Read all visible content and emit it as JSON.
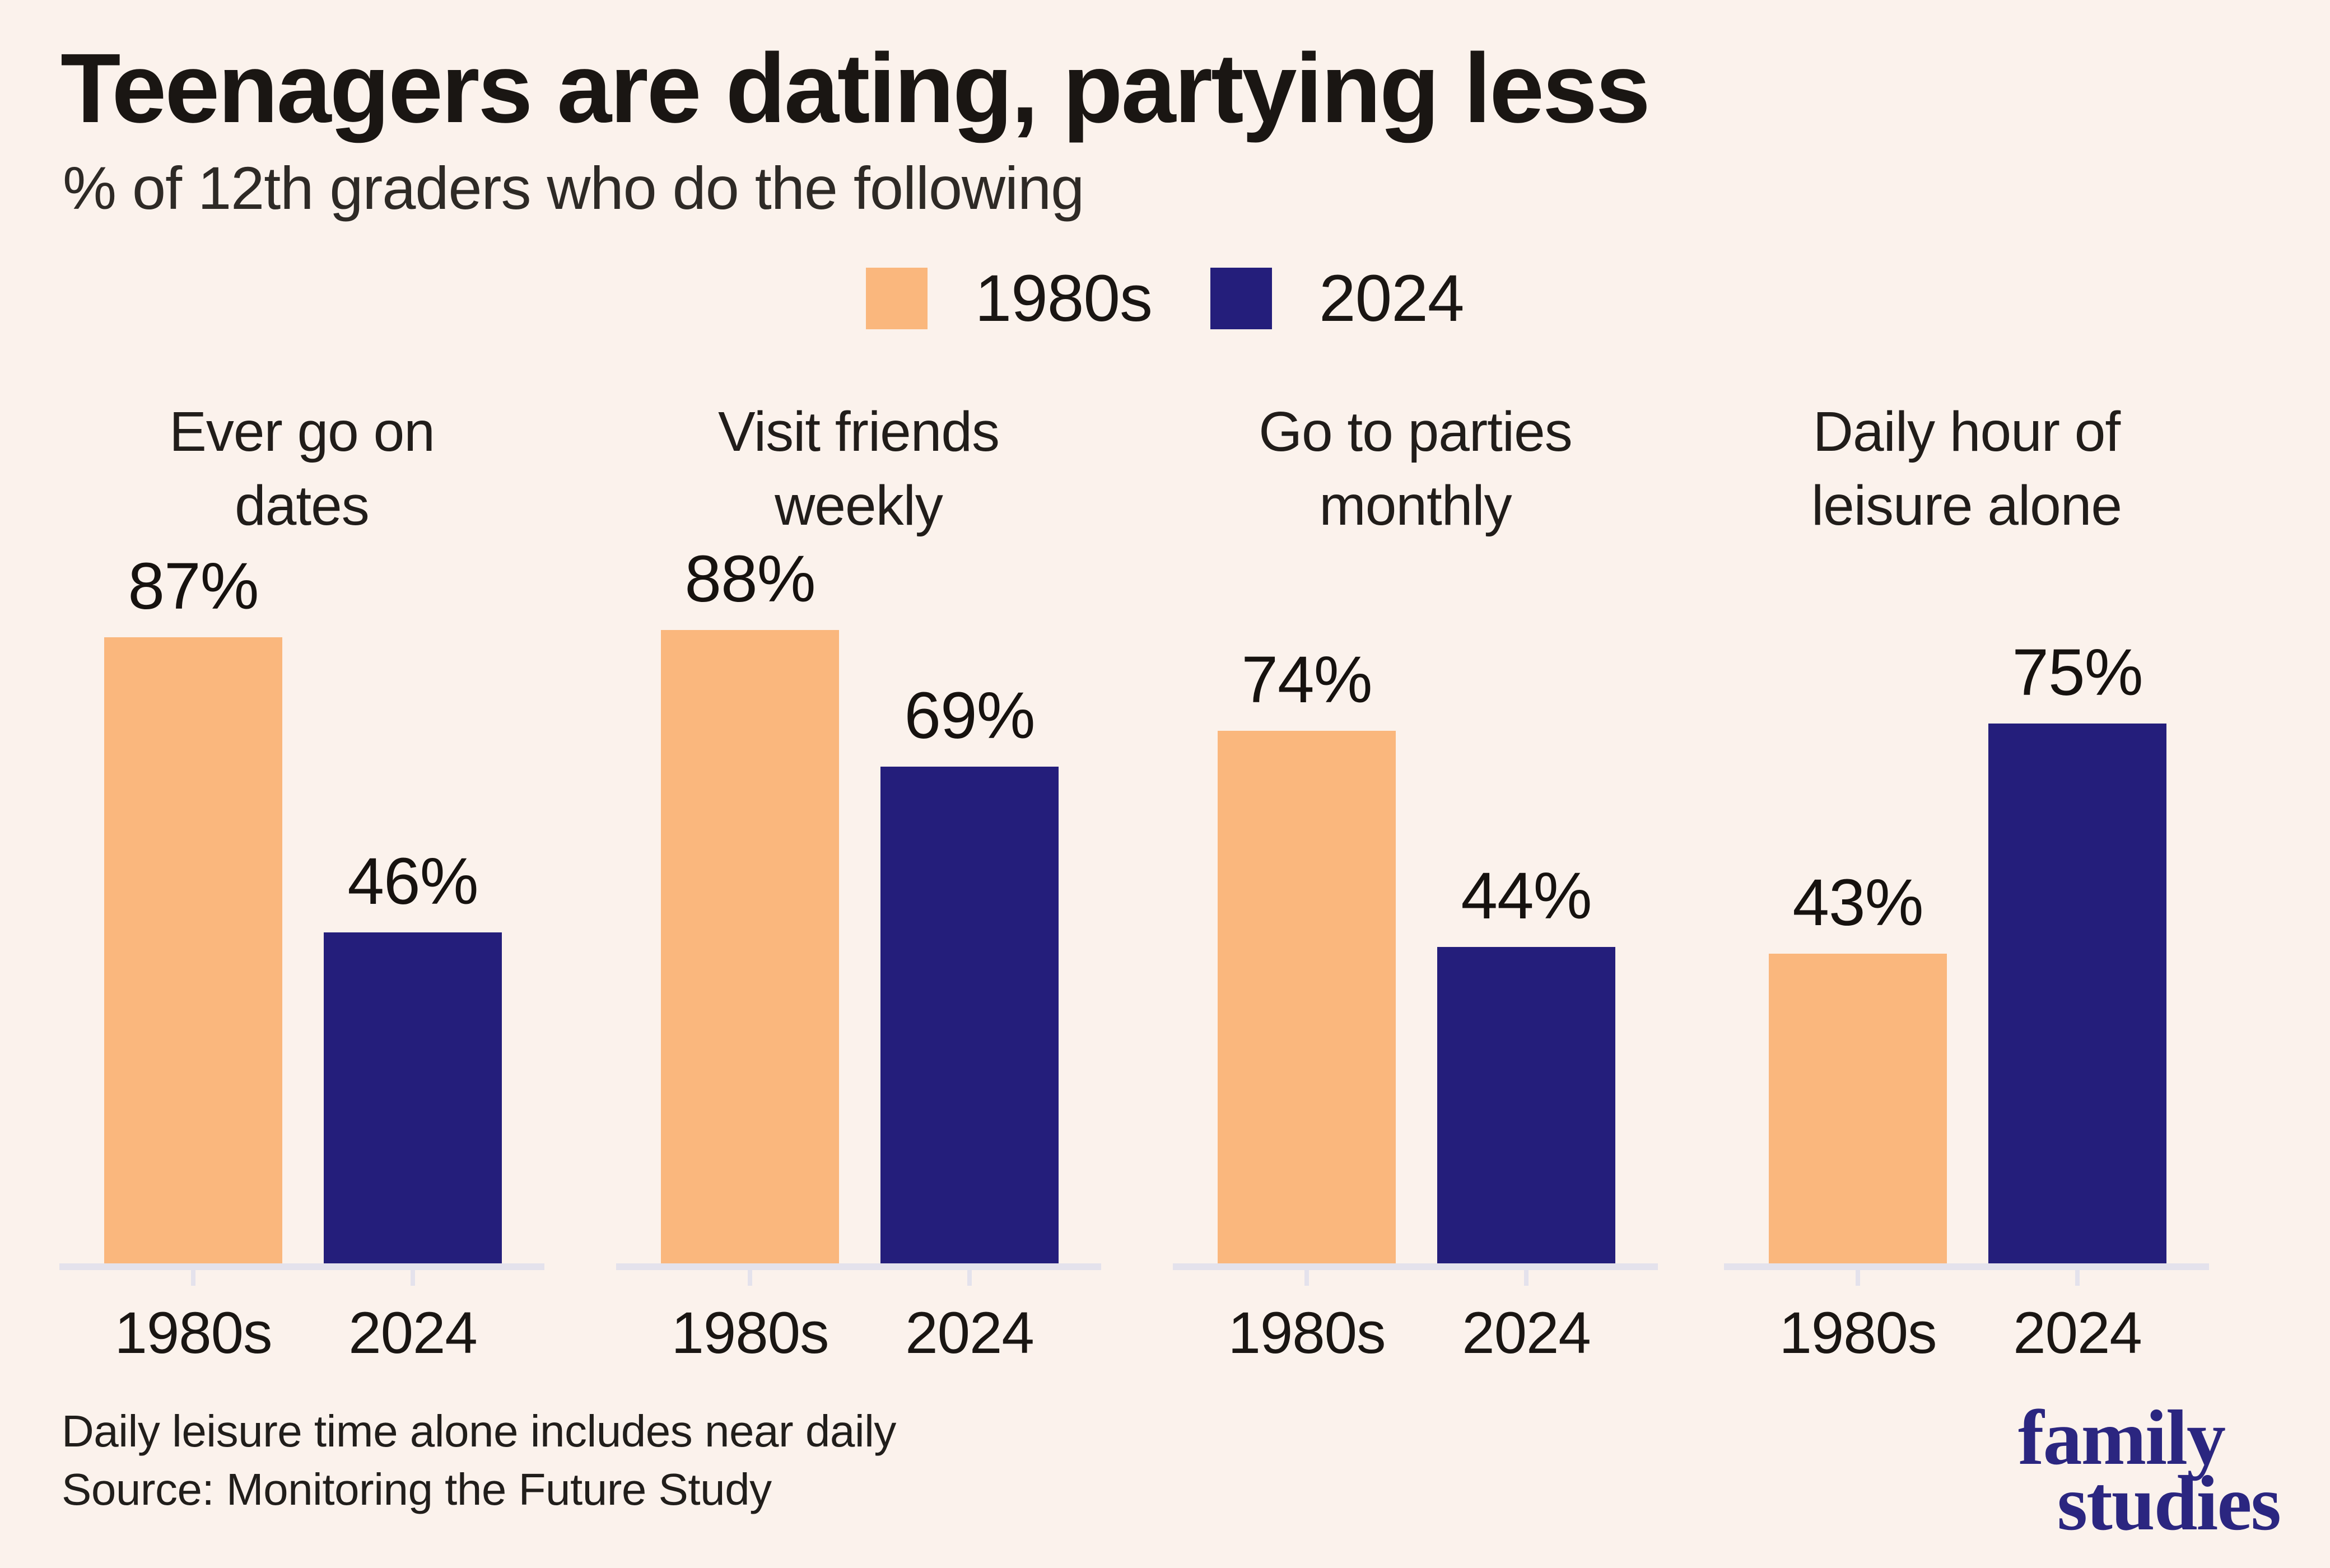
{
  "header": {
    "title": "Teenagers are dating, partying less",
    "subtitle": "% of 12th graders who do the following"
  },
  "legend": [
    {
      "label": "1980s",
      "color": "#FAB77D"
    },
    {
      "label": "2024",
      "color": "#241E7B"
    }
  ],
  "chart_data": {
    "type": "bar",
    "title": "Teenagers are dating, partying less",
    "subtitle": "% of 12th graders who do the following",
    "unit": "%",
    "series_names": [
      "1980s",
      "2024"
    ],
    "colors": {
      "1980s": "#FAB77D",
      "2024": "#241E7B"
    },
    "categories": [
      "Ever go on dates",
      "Visit friends weekly",
      "Go to parties monthly",
      "Daily hour of leisure alone"
    ],
    "groups": [
      {
        "category": "Ever go on dates",
        "category_lines": [
          "Ever go on",
          "dates"
        ],
        "values": [
          87,
          46
        ],
        "labels": [
          "87%",
          "46%"
        ]
      },
      {
        "category": "Visit friends weekly",
        "category_lines": [
          "Visit friends",
          "weekly"
        ],
        "values": [
          88,
          69
        ],
        "labels": [
          "88%",
          "69%"
        ]
      },
      {
        "category": "Go to parties monthly",
        "category_lines": [
          "Go to parties",
          "monthly"
        ],
        "values": [
          74,
          44
        ],
        "labels": [
          "74%",
          "44%"
        ]
      },
      {
        "category": "Daily hour of leisure alone",
        "category_lines": [
          "Daily hour of",
          "leisure alone"
        ],
        "values": [
          43,
          75
        ],
        "labels": [
          "43%",
          "75%"
        ]
      }
    ],
    "x_tick_labels": [
      "1980s",
      "2024"
    ],
    "ylim": [
      0,
      100
    ],
    "grid": false,
    "legend_position": "top-center",
    "value_labels": "above-bars",
    "background_color": "#FBF2EC",
    "axis_color": "#E4E2EC"
  },
  "footnotes": {
    "line1": "Daily leisure time alone includes near daily",
    "line2": "Source: Monitoring the Future Study"
  },
  "logo": {
    "line1": "family",
    "line2": "studies",
    "color": "#2B2680"
  }
}
